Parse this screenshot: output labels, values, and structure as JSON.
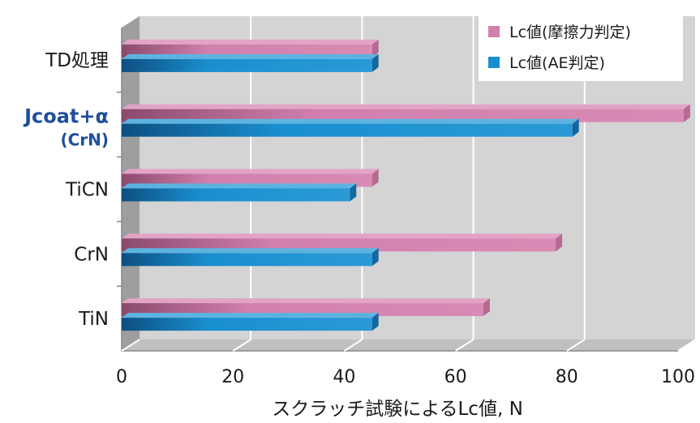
{
  "chart_data": {
    "type": "bar",
    "orientation": "horizontal",
    "three_d": true,
    "categories": [
      "TD処理",
      "Jcoat+α (CrN)",
      "TiCN",
      "CrN",
      "TiN"
    ],
    "category_lines": [
      [
        "TD処理"
      ],
      [
        "Jcoat+α",
        "(CrN)"
      ],
      [
        "TiCN"
      ],
      [
        "CrN"
      ],
      [
        "TiN"
      ]
    ],
    "highlight_category": "Jcoat+α (CrN)",
    "series": [
      {
        "name": "Lc値(摩擦力判定)",
        "color": "#d27fad",
        "values": [
          45,
          101,
          45,
          78,
          65
        ]
      },
      {
        "name": "Lc値(AE判定)",
        "color": "#1a8fcf",
        "values": [
          45,
          81,
          41,
          45,
          45
        ]
      }
    ],
    "xlabel": "スクラッチ試験によるLc値, N",
    "xlim": [
      0,
      100
    ],
    "xticks": [
      0,
      20,
      40,
      60,
      80,
      100
    ],
    "grid": true,
    "legend_position": "top-right"
  }
}
